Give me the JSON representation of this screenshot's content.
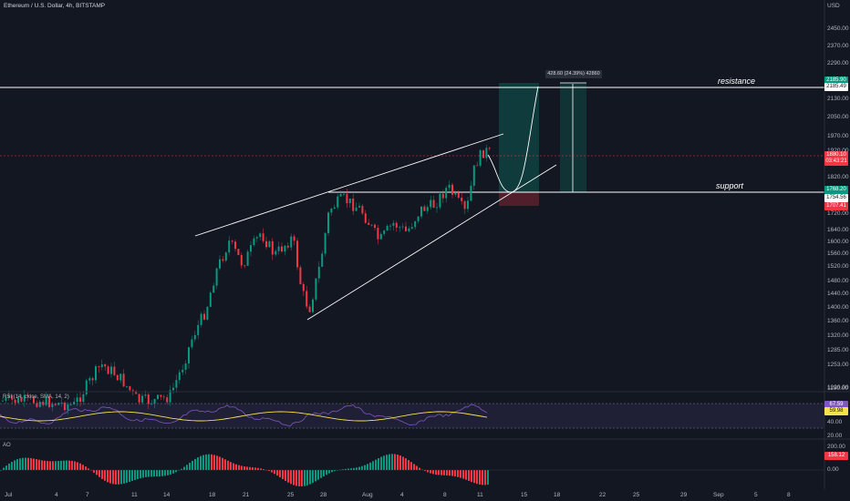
{
  "chart_title": "Ethereum / U.S. Dollar, 4h, BITSTAMP",
  "currency": "USD",
  "price_axis": [
    "2450.00",
    "2370.00",
    "2290.00",
    "2130.00",
    "2050.00",
    "1970.00",
    "1920.00",
    "1820.00",
    "1720.00",
    "1640.00",
    "1600.00",
    "1560.00",
    "1520.00",
    "1480.00",
    "1440.00",
    "1400.00",
    "1360.00",
    "1320.00",
    "1285.00",
    "1253.00",
    "1220.00",
    "1190.00"
  ],
  "price_tags": [
    {
      "text": "2185.90",
      "bg": "#089981",
      "fg": "#ffffff"
    },
    {
      "text": "2185.49",
      "bg": "#ffffff",
      "fg": "#131722"
    },
    {
      "text": "1880.10",
      "bg": "#f23645",
      "fg": "#ffffff"
    },
    {
      "text": "03:43:21",
      "bg": "#f23645",
      "fg": "#ffffff"
    },
    {
      "text": "1768.20",
      "bg": "#089981",
      "fg": "#ffffff"
    },
    {
      "text": "1754.56",
      "bg": "#ffffff",
      "fg": "#131722"
    },
    {
      "text": "1707.41",
      "bg": "#f23645",
      "fg": "#ffffff"
    }
  ],
  "annotations": {
    "resistance": "resistance",
    "support": "support"
  },
  "measure_label": "428.60 (24.39%) 42860",
  "rsi": {
    "title": "RSI (14, close, SMA, 14, 2)",
    "axis": [
      "80.00",
      "40.00",
      "20.00"
    ],
    "tags": [
      {
        "text": "67.59",
        "bg": "#7e57c2",
        "fg": "#ffffff"
      },
      {
        "text": "59.98",
        "bg": "#f7e14c",
        "fg": "#131722"
      }
    ]
  },
  "ao": {
    "title": "AO",
    "axis": [
      "200.00",
      "0.00"
    ],
    "tags": [
      {
        "text": "158.12",
        "bg": "#f23645",
        "fg": "#ffffff"
      }
    ]
  },
  "time_axis": [
    "Jul",
    "4",
    "7",
    "11",
    "14",
    "18",
    "21",
    "25",
    "28",
    "Aug",
    "4",
    "8",
    "11",
    "15",
    "18",
    "22",
    "25",
    "29",
    "Sep",
    "5",
    "8"
  ],
  "colors": {
    "bg": "#131722",
    "up": "#089981",
    "down": "#f23645",
    "line": "#ffffff",
    "rsi": "#7e57c2",
    "rsi_ma": "#f7e14c"
  }
}
